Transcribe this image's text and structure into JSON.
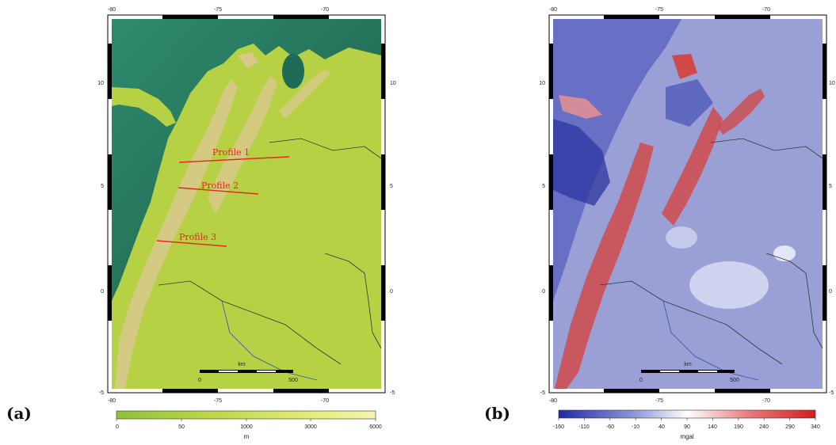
{
  "panels": [
    {
      "letter": "(a)",
      "lon_ticks": [
        "-80",
        "-75",
        "-70"
      ],
      "lat_ticks_left": [
        "10",
        "5",
        "0",
        "-5"
      ],
      "lat_ticks_right": [
        "10",
        "5",
        "0",
        "-5"
      ],
      "scalebar": {
        "label": "km",
        "start": "0",
        "end": "500"
      },
      "profiles": [
        "Profile 1",
        "Profile 2",
        "Profile 3"
      ],
      "colorbar": {
        "ticks": [
          "0",
          "50",
          "1000",
          "3000",
          "6000"
        ],
        "unit": "m",
        "colors": [
          "#8fc23a",
          "#b9d648",
          "#e4ec7a",
          "#f6f3b0"
        ]
      }
    },
    {
      "letter": "(b)",
      "lon_ticks": [
        "-80",
        "-75",
        "-70"
      ],
      "lat_ticks_left": [
        "10",
        "5",
        "0",
        "-5"
      ],
      "lat_ticks_right": [
        "10",
        "5",
        "0",
        "-5"
      ],
      "scalebar": {
        "label": "km",
        "start": "0",
        "end": "500"
      },
      "colorbar": {
        "ticks": [
          "-160",
          "-110",
          "-60",
          "-10",
          "40",
          "90",
          "140",
          "190",
          "240",
          "290",
          "340"
        ],
        "unit": "mgal",
        "colors": [
          "#1e2aa8",
          "#8e9ad8",
          "#ffffff",
          "#e87878",
          "#d21e1e"
        ]
      }
    }
  ],
  "colors": {
    "ocean_dark": "#1f6b57",
    "ocean_light": "#2f8a6c",
    "land": "#b7d145",
    "andes": "#d8c98a",
    "profile_line": "#e02a1f",
    "gravity_base": "#9aa0d6",
    "gravity_high": "#d04a4a",
    "gravity_low": "#2c35a0"
  }
}
